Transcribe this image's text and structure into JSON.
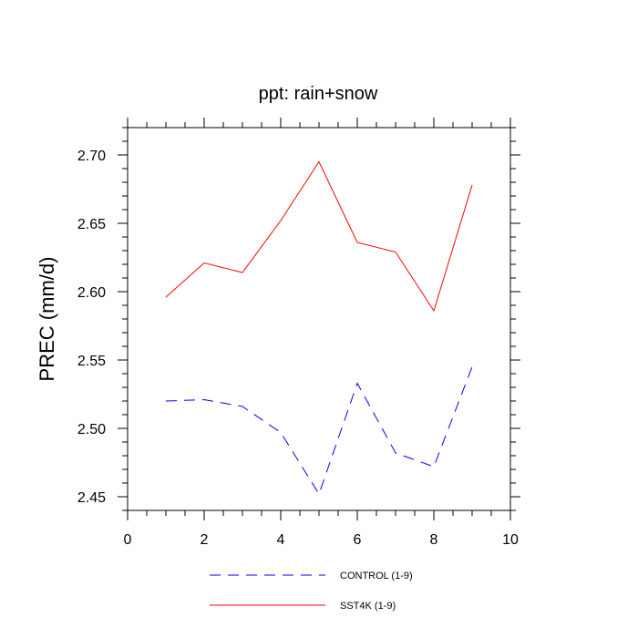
{
  "chart_data": {
    "type": "line",
    "title": "ppt: rain+snow",
    "xlabel": "",
    "ylabel": "PREC  (mm/d)",
    "xlim": [
      0,
      10
    ],
    "ylim": [
      2.44,
      2.72
    ],
    "xticks": [
      0,
      2,
      4,
      6,
      8,
      10
    ],
    "xtick_labels": [
      "0",
      "2",
      "4",
      "6",
      "8",
      "10"
    ],
    "yticks": [
      2.45,
      2.5,
      2.55,
      2.6,
      2.65,
      2.7
    ],
    "ytick_labels": [
      "2.45",
      "2.50",
      "2.55",
      "2.60",
      "2.65",
      "2.70"
    ],
    "x": [
      1,
      2,
      3,
      4,
      5,
      6,
      7,
      8,
      9
    ],
    "series": [
      {
        "name": "CONTROL (1-9)",
        "color": "#0000ff",
        "style": "dashed",
        "values": [
          2.52,
          2.521,
          2.516,
          2.497,
          2.452,
          2.533,
          2.482,
          2.472,
          2.545
        ]
      },
      {
        "name": "SST4K (1-9)",
        "color": "#ff0000",
        "style": "solid",
        "values": [
          2.596,
          2.621,
          2.614,
          2.652,
          2.695,
          2.636,
          2.629,
          2.586,
          2.678
        ]
      }
    ],
    "grid": false,
    "legend_position": "bottom"
  }
}
